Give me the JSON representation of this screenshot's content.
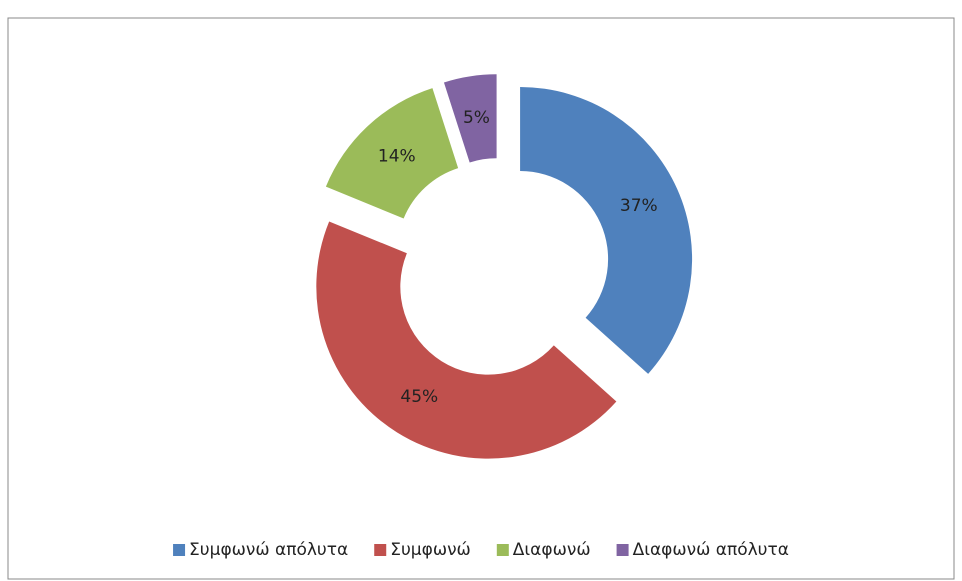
{
  "chart_data": {
    "type": "pie",
    "donut": true,
    "exploded": true,
    "categories": [
      "Συμφωνώ απόλυτα",
      "Συμφωνώ",
      "Διαφωνώ",
      "Διαφωνώ απόλυτα"
    ],
    "values": [
      37,
      45,
      14,
      5
    ],
    "value_labels": [
      "37%",
      "45%",
      "14%",
      "5%"
    ],
    "colors": [
      "#4f81bd",
      "#c0504d",
      "#9bbb59",
      "#8064a2"
    ],
    "legend": "bottom"
  }
}
